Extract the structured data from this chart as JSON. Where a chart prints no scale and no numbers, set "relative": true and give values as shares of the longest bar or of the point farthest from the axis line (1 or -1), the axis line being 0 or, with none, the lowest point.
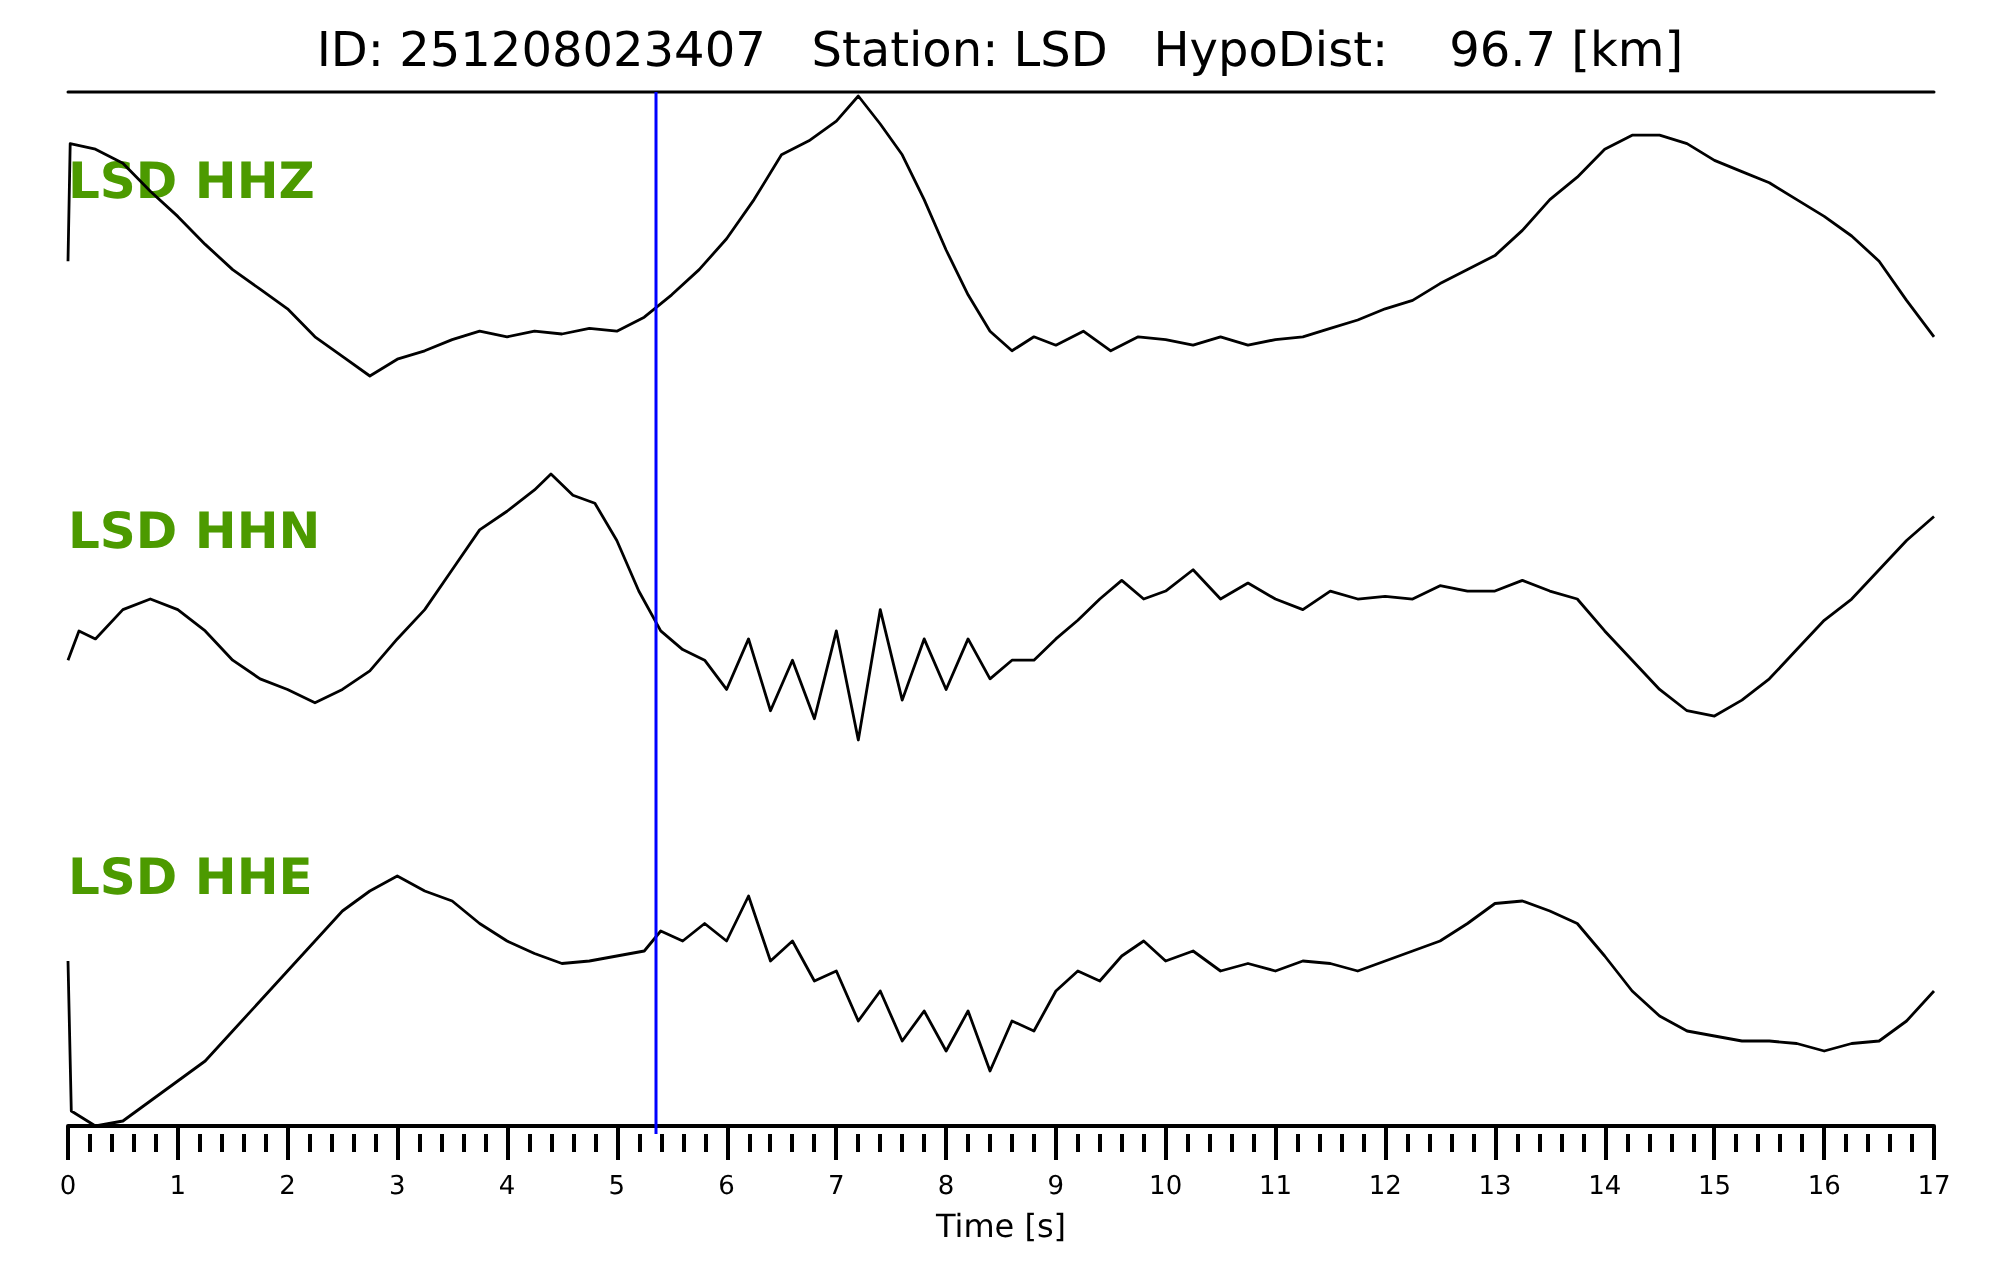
{
  "chart_data": [
    {
      "type": "line",
      "title": "ID: 251208023407   Station: LSD   HypoDist:    96.7 [km]",
      "relative": true,
      "marker": "none",
      "grid": false,
      "tick_labels": false,
      "xlim": [
        0,
        17
      ],
      "annotations": [
        "LSD HHZ"
      ],
      "ref_lines": [
        {
          "axis": "x",
          "value": 5.35,
          "color": "#0000ff"
        }
      ],
      "x": [
        0,
        0.02,
        0.25,
        0.5,
        0.75,
        1,
        1.25,
        1.5,
        1.75,
        2,
        2.25,
        2.5,
        2.75,
        3,
        3.25,
        3.5,
        3.75,
        4,
        4.25,
        4.5,
        4.75,
        5,
        5.25,
        5.5,
        5.75,
        6,
        6.25,
        6.5,
        6.75,
        7,
        7.2,
        7.4,
        7.6,
        7.8,
        8,
        8.2,
        8.4,
        8.6,
        8.8,
        9,
        9.25,
        9.5,
        9.75,
        10,
        10.25,
        10.5,
        10.75,
        11,
        11.25,
        11.5,
        11.75,
        12,
        12.25,
        12.5,
        12.75,
        13,
        13.25,
        13.5,
        13.75,
        14,
        14.25,
        14.5,
        14.75,
        15,
        15.25,
        15.5,
        15.75,
        16,
        16.25,
        16.5,
        16.75,
        17
      ],
      "series": [
        {
          "color": "#000000",
          "values": [
            0.41,
            0.83,
            0.81,
            0.76,
            0.66,
            0.57,
            0.47,
            0.38,
            0.31,
            0.24,
            0.14,
            0.07,
            0,
            0.06,
            0.09,
            0.13,
            0.16,
            0.14,
            0.16,
            0.15,
            0.17,
            0.16,
            0.21,
            0.29,
            0.38,
            0.49,
            0.63,
            0.79,
            0.84,
            0.91,
            1,
            0.9,
            0.79,
            0.63,
            0.45,
            0.29,
            0.16,
            0.09,
            0.14,
            0.11,
            0.16,
            0.09,
            0.14,
            0.13,
            0.11,
            0.14,
            0.11,
            0.13,
            0.14,
            0.17,
            0.2,
            0.24,
            0.27,
            0.33,
            0.38,
            0.43,
            0.52,
            0.63,
            0.71,
            0.81,
            0.86,
            0.86,
            0.83,
            0.77,
            0.73,
            0.69,
            0.63,
            0.57,
            0.5,
            0.41,
            0.27,
            0.14
          ]
        }
      ]
    },
    {
      "type": "line",
      "relative": true,
      "marker": "none",
      "grid": false,
      "tick_labels": false,
      "xlim": [
        0,
        17
      ],
      "annotations": [
        "LSD HHN"
      ],
      "ref_lines": [
        {
          "axis": "x",
          "value": 5.35,
          "color": "#0000ff"
        }
      ],
      "x": [
        0,
        0.1,
        0.25,
        0.5,
        0.75,
        1,
        1.25,
        1.5,
        1.75,
        2,
        2.25,
        2.5,
        2.75,
        3,
        3.25,
        3.5,
        3.75,
        4,
        4.25,
        4.4,
        4.6,
        4.8,
        5,
        5.2,
        5.4,
        5.6,
        5.8,
        6,
        6.2,
        6.4,
        6.6,
        6.8,
        7,
        7.2,
        7.4,
        7.6,
        7.8,
        8,
        8.2,
        8.4,
        8.6,
        8.8,
        9,
        9.2,
        9.4,
        9.6,
        9.8,
        10,
        10.25,
        10.5,
        10.75,
        11,
        11.25,
        11.5,
        11.75,
        12,
        12.25,
        12.5,
        12.75,
        13,
        13.25,
        13.5,
        13.75,
        14,
        14.25,
        14.5,
        14.75,
        15,
        15.25,
        15.5,
        15.75,
        16,
        16.25,
        16.5,
        16.75,
        17
      ],
      "series": [
        {
          "color": "#000000",
          "values": [
            0.3,
            0.41,
            0.38,
            0.49,
            0.53,
            0.49,
            0.41,
            0.3,
            0.23,
            0.19,
            0.14,
            0.19,
            0.26,
            0.38,
            0.49,
            0.64,
            0.79,
            0.86,
            0.94,
            1,
            0.92,
            0.89,
            0.75,
            0.56,
            0.41,
            0.34,
            0.3,
            0.19,
            0.38,
            0.11,
            0.3,
            0.08,
            0.41,
            0,
            0.49,
            0.15,
            0.38,
            0.19,
            0.38,
            0.23,
            0.3,
            0.3,
            0.38,
            0.45,
            0.53,
            0.6,
            0.53,
            0.56,
            0.64,
            0.53,
            0.59,
            0.53,
            0.49,
            0.56,
            0.53,
            0.54,
            0.53,
            0.58,
            0.56,
            0.56,
            0.6,
            0.56,
            0.53,
            0.41,
            0.3,
            0.19,
            0.11,
            0.09,
            0.15,
            0.23,
            0.34,
            0.45,
            0.53,
            0.64,
            0.75,
            0.84
          ]
        }
      ]
    },
    {
      "type": "line",
      "relative": true,
      "marker": "none",
      "grid": false,
      "tick_labels": "x",
      "xlim": [
        0,
        17
      ],
      "xlabel": "Time [s]",
      "annotations": [
        "LSD HHE"
      ],
      "ref_lines": [
        {
          "axis": "x",
          "value": 5.35,
          "color": "#0000ff"
        }
      ],
      "xticks": [
        0,
        {
          "value": 0.2,
          "label": null
        },
        {
          "value": 0.4,
          "label": null
        },
        {
          "value": 0.6,
          "label": null
        },
        {
          "value": 0.8,
          "label": null
        },
        1,
        {
          "value": 1.2,
          "label": null
        },
        {
          "value": 1.4,
          "label": null
        },
        {
          "value": 1.6,
          "label": null
        },
        {
          "value": 1.8,
          "label": null
        },
        2,
        {
          "value": 2.2,
          "label": null
        },
        {
          "value": 2.4,
          "label": null
        },
        {
          "value": 2.6,
          "label": null
        },
        {
          "value": 2.8,
          "label": null
        },
        3,
        {
          "value": 3.2,
          "label": null
        },
        {
          "value": 3.4,
          "label": null
        },
        {
          "value": 3.6,
          "label": null
        },
        {
          "value": 3.8,
          "label": null
        },
        4,
        {
          "value": 4.2,
          "label": null
        },
        {
          "value": 4.4,
          "label": null
        },
        {
          "value": 4.6,
          "label": null
        },
        {
          "value": 4.8,
          "label": null
        },
        5,
        {
          "value": 5.2,
          "label": null
        },
        {
          "value": 5.4,
          "label": null
        },
        {
          "value": 5.6,
          "label": null
        },
        {
          "value": 5.8,
          "label": null
        },
        6,
        {
          "value": 6.2,
          "label": null
        },
        {
          "value": 6.4,
          "label": null
        },
        {
          "value": 6.6,
          "label": null
        },
        {
          "value": 6.8,
          "label": null
        },
        7,
        {
          "value": 7.2,
          "label": null
        },
        {
          "value": 7.4,
          "label": null
        },
        {
          "value": 7.6,
          "label": null
        },
        {
          "value": 7.8,
          "label": null
        },
        8,
        {
          "value": 8.2,
          "label": null
        },
        {
          "value": 8.4,
          "label": null
        },
        {
          "value": 8.6,
          "label": null
        },
        {
          "value": 8.8,
          "label": null
        },
        9,
        {
          "value": 9.2,
          "label": null
        },
        {
          "value": 9.4,
          "label": null
        },
        {
          "value": 9.6,
          "label": null
        },
        {
          "value": 9.8,
          "label": null
        },
        10,
        {
          "value": 10.2,
          "label": null
        },
        {
          "value": 10.4,
          "label": null
        },
        {
          "value": 10.6,
          "label": null
        },
        {
          "value": 10.8,
          "label": null
        },
        11,
        {
          "value": 11.2,
          "label": null
        },
        {
          "value": 11.4,
          "label": null
        },
        {
          "value": 11.6,
          "label": null
        },
        {
          "value": 11.8,
          "label": null
        },
        12,
        {
          "value": 12.2,
          "label": null
        },
        {
          "value": 12.4,
          "label": null
        },
        {
          "value": 12.6,
          "label": null
        },
        {
          "value": 12.8,
          "label": null
        },
        13,
        {
          "value": 13.2,
          "label": null
        },
        {
          "value": 13.4,
          "label": null
        },
        {
          "value": 13.6,
          "label": null
        },
        {
          "value": 13.8,
          "label": null
        },
        14,
        {
          "value": 14.2,
          "label": null
        },
        {
          "value": 14.4,
          "label": null
        },
        {
          "value": 14.6,
          "label": null
        },
        {
          "value": 14.8,
          "label": null
        },
        15,
        {
          "value": 15.2,
          "label": null
        },
        {
          "value": 15.4,
          "label": null
        },
        {
          "value": 15.6,
          "label": null
        },
        {
          "value": 15.8,
          "label": null
        },
        16,
        {
          "value": 16.2,
          "label": null
        },
        {
          "value": 16.4,
          "label": null
        },
        {
          "value": 16.6,
          "label": null
        },
        {
          "value": 16.8,
          "label": null
        },
        17
      ],
      "x": [
        0,
        0.03,
        0.25,
        0.5,
        0.75,
        1,
        1.25,
        1.5,
        1.75,
        2,
        2.25,
        2.5,
        2.75,
        3,
        3.25,
        3.5,
        3.75,
        4,
        4.25,
        4.5,
        4.75,
        5,
        5.25,
        5.4,
        5.6,
        5.8,
        6,
        6.2,
        6.4,
        6.6,
        6.8,
        7,
        7.2,
        7.4,
        7.6,
        7.8,
        8,
        8.2,
        8.4,
        8.6,
        8.8,
        9,
        9.2,
        9.4,
        9.6,
        9.8,
        10,
        10.25,
        10.5,
        10.75,
        11,
        11.25,
        11.5,
        11.75,
        12,
        12.25,
        12.5,
        12.75,
        13,
        13.25,
        13.5,
        13.75,
        14,
        14.25,
        14.5,
        14.75,
        15,
        15.25,
        15.5,
        15.75,
        16,
        16.25,
        16.5,
        16.75,
        17
      ],
      "series": [
        {
          "color": "#000000",
          "values": [
            0.66,
            0.06,
            0,
            0.02,
            0.1,
            0.18,
            0.26,
            0.38,
            0.5,
            0.62,
            0.74,
            0.86,
            0.94,
            1,
            0.94,
            0.9,
            0.81,
            0.74,
            0.69,
            0.65,
            0.66,
            0.68,
            0.7,
            0.78,
            0.74,
            0.81,
            0.74,
            0.92,
            0.66,
            0.74,
            0.58,
            0.62,
            0.42,
            0.54,
            0.34,
            0.46,
            0.3,
            0.46,
            0.22,
            0.42,
            0.38,
            0.54,
            0.62,
            0.58,
            0.68,
            0.74,
            0.66,
            0.7,
            0.62,
            0.65,
            0.62,
            0.66,
            0.65,
            0.62,
            0.66,
            0.7,
            0.74,
            0.81,
            0.89,
            0.9,
            0.86,
            0.81,
            0.68,
            0.54,
            0.44,
            0.38,
            0.36,
            0.34,
            0.34,
            0.33,
            0.3,
            0.33,
            0.34,
            0.42,
            0.54
          ]
        }
      ]
    }
  ]
}
